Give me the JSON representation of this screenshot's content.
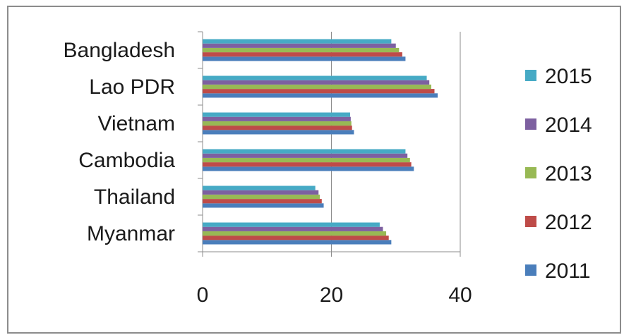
{
  "chart_data": {
    "type": "bar",
    "orientation": "horizontal",
    "categories": [
      "Bangladesh",
      "Lao PDR",
      "Vietnam",
      "Cambodia",
      "Thailand",
      "Myanmar"
    ],
    "series": [
      {
        "name": "2011",
        "color": "#4a7ebb",
        "values": [
          31.5,
          36.5,
          23.5,
          32.8,
          18.8,
          29.3
        ]
      },
      {
        "name": "2012",
        "color": "#be4b48",
        "values": [
          31.0,
          36.0,
          23.2,
          32.4,
          18.5,
          28.9
        ]
      },
      {
        "name": "2013",
        "color": "#98b954",
        "values": [
          30.5,
          35.5,
          23.1,
          32.2,
          18.2,
          28.5
        ]
      },
      {
        "name": "2014",
        "color": "#7d60a0",
        "values": [
          30.0,
          35.2,
          23.0,
          31.8,
          18.0,
          28.0
        ]
      },
      {
        "name": "2015",
        "color": "#46aac5",
        "values": [
          29.3,
          34.8,
          22.9,
          31.5,
          17.5,
          27.5
        ]
      }
    ],
    "xlim": [
      0,
      40
    ],
    "xticks": [
      "0",
      "20",
      "40"
    ],
    "grid": true,
    "legend": "right",
    "title": "",
    "xlabel": "",
    "ylabel": ""
  }
}
